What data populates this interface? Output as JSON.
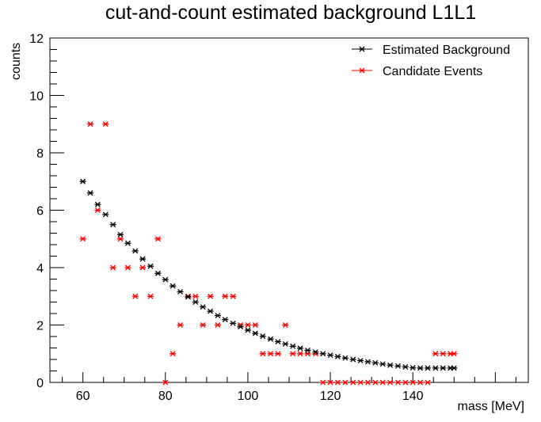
{
  "chart_data": {
    "type": "scatter",
    "title": "cut-and-count estimated background L1L1",
    "xlabel": "mass [MeV]",
    "ylabel": "counts",
    "xlim": [
      52,
      168
    ],
    "ylim": [
      0,
      12
    ],
    "x_ticks": [
      60,
      80,
      100,
      120,
      140
    ],
    "y_ticks": [
      0,
      2,
      4,
      6,
      8,
      10,
      12
    ],
    "grid": false,
    "legend_position": "top-right",
    "x": [
      60,
      61.8,
      63.6,
      65.5,
      67.3,
      69.1,
      70.9,
      72.7,
      74.5,
      76.4,
      78.2,
      80,
      81.8,
      83.6,
      85.5,
      87.3,
      89.1,
      90.9,
      92.7,
      94.5,
      96.4,
      98.2,
      100,
      101.8,
      103.6,
      105.5,
      107.3,
      109.1,
      110.9,
      112.7,
      114.5,
      116.4,
      118.2,
      120,
      121.8,
      123.6,
      125.5,
      127.3,
      129.1,
      130.9,
      132.7,
      134.5,
      136.4,
      138.2,
      140,
      141.8,
      143.6,
      145.5,
      147.3,
      149.1,
      150
    ],
    "series": [
      {
        "name": "Estimated Background",
        "color": "#000000",
        "values": [
          7.0,
          6.6,
          6.2,
          5.85,
          5.5,
          5.15,
          4.85,
          4.58,
          4.3,
          4.05,
          3.8,
          3.58,
          3.36,
          3.16,
          2.98,
          2.8,
          2.63,
          2.48,
          2.33,
          2.19,
          2.06,
          1.94,
          1.82,
          1.71,
          1.61,
          1.51,
          1.42,
          1.34,
          1.26,
          1.19,
          1.12,
          1.06,
          1.0,
          0.95,
          0.9,
          0.85,
          0.8,
          0.76,
          0.72,
          0.68,
          0.64,
          0.6,
          0.57,
          0.54,
          0.51,
          0.5,
          0.5,
          0.5,
          0.5,
          0.5,
          0.5
        ]
      },
      {
        "name": "Candidate Events",
        "color": "#ff0000",
        "values": [
          5,
          9,
          6,
          9,
          4,
          5,
          4,
          3,
          4,
          3,
          5,
          0,
          1,
          2,
          3,
          3,
          2,
          3,
          2,
          3,
          3,
          2,
          2,
          2,
          1,
          1,
          1,
          2,
          1,
          1,
          1,
          1,
          0,
          0,
          0,
          0,
          0,
          0,
          0,
          0,
          0,
          0,
          0,
          0,
          0,
          0,
          0,
          1,
          1,
          1,
          1
        ]
      }
    ]
  }
}
